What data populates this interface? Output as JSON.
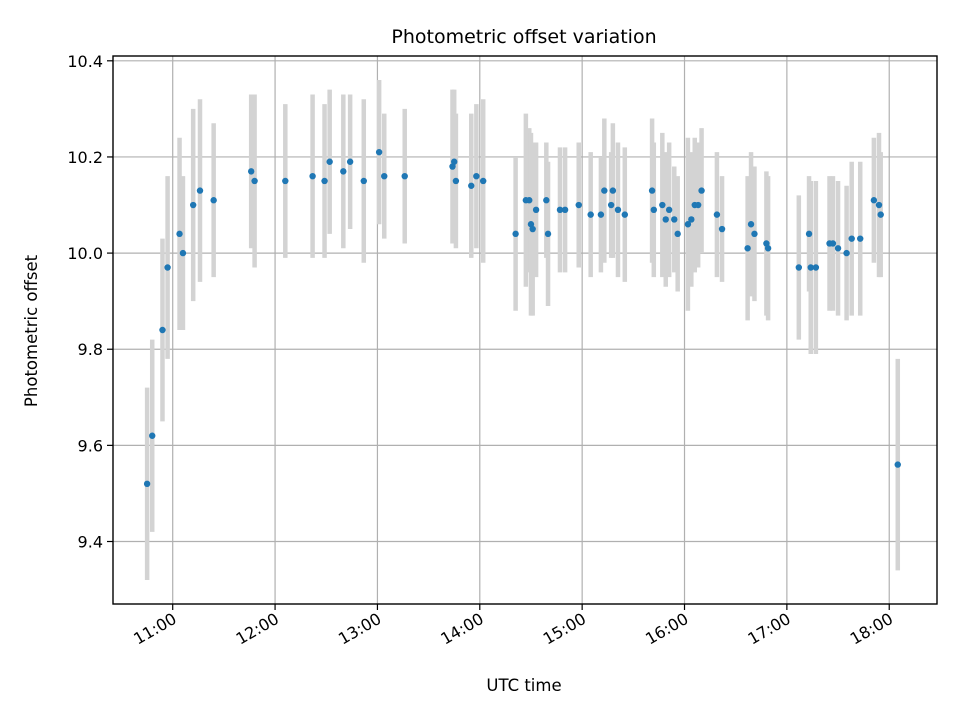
{
  "chart_data": {
    "type": "scatter",
    "title": "Photometric offset variation",
    "xlabel": "UTC time",
    "ylabel": "Photometric offset",
    "xlim": [
      "10:25",
      "18:28"
    ],
    "ylim": [
      9.27,
      10.41
    ],
    "x_ticks": [
      "11:00",
      "12:00",
      "13:00",
      "14:00",
      "15:00",
      "16:00",
      "17:00",
      "18:00"
    ],
    "y_ticks": [
      "9.4",
      "9.6",
      "9.8",
      "10.0",
      "10.2",
      "10.4"
    ],
    "grid": true,
    "colors": {
      "point": "#1f77b4",
      "errorbar": "#d3d3d3",
      "grid": "#b0b0b0"
    },
    "series": [
      {
        "x": [
          "10:45",
          "10:48",
          "10:54",
          "10:57",
          "11:04",
          "11:06",
          "11:12",
          "11:16",
          "11:24",
          "11:46",
          "11:48",
          "12:06",
          "12:22",
          "12:29",
          "12:32",
          "12:40",
          "12:44",
          "12:52",
          "13:01",
          "13:04",
          "13:16",
          "13:44",
          "13:45",
          "13:46",
          "13:55",
          "13:58",
          "14:02",
          "14:21",
          "14:27",
          "14:29",
          "14:30",
          "14:31",
          "14:33",
          "14:39",
          "14:40",
          "14:47",
          "14:50",
          "14:58",
          "15:05",
          "15:11",
          "15:13",
          "15:17",
          "15:18",
          "15:21",
          "15:25",
          "15:41",
          "15:42",
          "15:47",
          "15:49",
          "15:51",
          "15:54",
          "15:56",
          "16:02",
          "16:04",
          "16:06",
          "16:08",
          "16:10",
          "16:19",
          "16:22",
          "16:37",
          "16:39",
          "16:41",
          "16:48",
          "16:49",
          "17:07",
          "17:13",
          "17:14",
          "17:17",
          "17:25",
          "17:27",
          "17:30",
          "17:35",
          "17:38",
          "17:43",
          "17:51",
          "17:54",
          "17:55",
          "18:05"
        ],
        "y": [
          9.52,
          9.62,
          9.84,
          9.97,
          10.04,
          10.0,
          10.1,
          10.13,
          10.11,
          10.17,
          10.15,
          10.15,
          10.16,
          10.15,
          10.19,
          10.17,
          10.19,
          10.15,
          10.21,
          10.16,
          10.16,
          10.18,
          10.19,
          10.15,
          10.14,
          10.16,
          10.15,
          10.04,
          10.11,
          10.11,
          10.06,
          10.05,
          10.09,
          10.11,
          10.04,
          10.09,
          10.09,
          10.1,
          10.08,
          10.08,
          10.13,
          10.1,
          10.13,
          10.09,
          10.08,
          10.13,
          10.09,
          10.1,
          10.07,
          10.09,
          10.07,
          10.04,
          10.06,
          10.07,
          10.1,
          10.1,
          10.13,
          10.08,
          10.05,
          10.01,
          10.06,
          10.04,
          10.02,
          10.01,
          9.97,
          10.04,
          9.97,
          9.97,
          10.02,
          10.02,
          10.01,
          10.0,
          10.03,
          10.03,
          10.11,
          10.1,
          10.08,
          9.56
        ],
        "yerr": [
          0.2,
          0.2,
          0.19,
          0.19,
          0.2,
          0.16,
          0.2,
          0.19,
          0.16,
          0.16,
          0.18,
          0.16,
          0.17,
          0.16,
          0.15,
          0.16,
          0.14,
          0.17,
          0.15,
          0.13,
          0.14,
          0.16,
          0.15,
          0.14,
          0.15,
          0.15,
          0.17,
          0.16,
          0.18,
          0.15,
          0.19,
          0.18,
          0.14,
          0.12,
          0.15,
          0.13,
          0.13,
          0.13,
          0.13,
          0.12,
          0.15,
          0.11,
          0.14,
          0.14,
          0.14,
          0.15,
          0.14,
          0.15,
          0.14,
          0.14,
          0.11,
          0.12,
          0.18,
          0.14,
          0.14,
          0.13,
          0.13,
          0.13,
          0.11,
          0.15,
          0.15,
          0.14,
          0.15,
          0.15,
          0.15,
          0.12,
          0.18,
          0.18,
          0.14,
          0.14,
          0.14,
          0.14,
          0.16,
          0.16,
          0.13,
          0.15,
          0.13,
          0.22
        ]
      }
    ]
  }
}
